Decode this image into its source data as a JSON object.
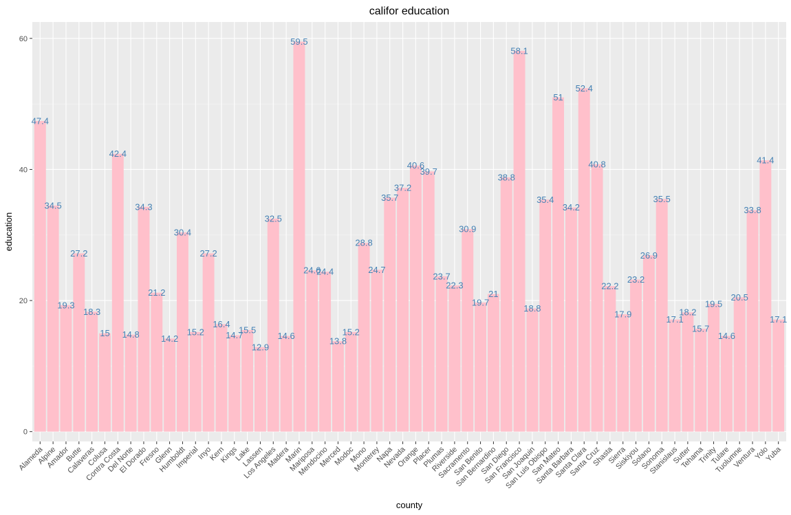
{
  "chart_data": {
    "type": "bar",
    "title": "califor education",
    "xlabel": "county",
    "ylabel": "education",
    "ylim": [
      -1.5,
      62.5
    ],
    "yticks": [
      0,
      20,
      40,
      60
    ],
    "grid": true,
    "colors": {
      "bar": "#FFC0CB",
      "label": "#4682B4",
      "panel": "#EBEBEB",
      "grid_major": "#FFFFFF",
      "grid_minor": "#F5F5F5"
    },
    "categories": [
      "Alameda",
      "Alpine",
      "Amador",
      "Butte",
      "Calaveras",
      "Colusa",
      "Contra Costa",
      "Del Norte",
      "El Dorado",
      "Fresno",
      "Glenn",
      "Humboldt",
      "Imperial",
      "Inyo",
      "Kern",
      "Kings",
      "Lake",
      "Lassen",
      "Los Angeles",
      "Madera",
      "Marin",
      "Mariposa",
      "Mendocino",
      "Merced",
      "Modoc",
      "Mono",
      "Monterey",
      "Napa",
      "Nevada",
      "Orange",
      "Placer",
      "Plumas",
      "Riverside",
      "Sacramento",
      "San Benito",
      "San Bernardino",
      "San Diego",
      "San Francisco",
      "San Joaquin",
      "San Luis Obispo",
      "San Mateo",
      "Santa Barbara",
      "Santa Clara",
      "Santa Cruz",
      "Shasta",
      "Sierra",
      "Siskiyou",
      "Solano",
      "Sonoma",
      "Stanislaus",
      "Sutter",
      "Tehama",
      "Trinity",
      "Tulare",
      "Tuolumne",
      "Ventura",
      "Yolo",
      "Yuba"
    ],
    "values": [
      47.4,
      34.5,
      19.3,
      27.2,
      18.3,
      15,
      42.4,
      14.8,
      34.3,
      21.2,
      14.2,
      30.4,
      15.2,
      27.2,
      16.4,
      14.7,
      15.5,
      12.9,
      32.5,
      14.6,
      59.5,
      24.6,
      24.4,
      13.8,
      15.2,
      28.8,
      24.7,
      35.7,
      37.2,
      40.6,
      39.7,
      23.7,
      22.3,
      30.9,
      19.7,
      21,
      38.8,
      58.1,
      18.8,
      35.4,
      51,
      34.2,
      52.4,
      40.8,
      22.2,
      17.9,
      23.2,
      26.9,
      35.5,
      17.1,
      18.2,
      15.7,
      19.5,
      14.6,
      20.5,
      33.8,
      41.4,
      17.1
    ],
    "labels": [
      "47.4",
      "34.5",
      "19.3",
      "27.2",
      "18.3",
      "15",
      "42.4",
      "14.8",
      "34.3",
      "21.2",
      "14.2",
      "30.4",
      "15.2",
      "27.2",
      "16.4",
      "14.7",
      "15.5",
      "12.9",
      "32.5",
      "14.6",
      "59.5",
      "24.6",
      "24.4",
      "13.8",
      "15.2",
      "28.8",
      "24.7",
      "35.7",
      "37.2",
      "40.6",
      "39.7",
      "23.7",
      "22.3",
      "30.9",
      "19.7",
      "21",
      "38.8",
      "58.1",
      "18.8",
      "35.4",
      "51",
      "34.2",
      "52.4",
      "40.8",
      "22.2",
      "17.9",
      "23.2",
      "26.9",
      "35.5",
      "17.1",
      "18.2",
      "15.7",
      "19.5",
      "14.6",
      "20.5",
      "33.8",
      "41.4",
      "17.1"
    ]
  }
}
